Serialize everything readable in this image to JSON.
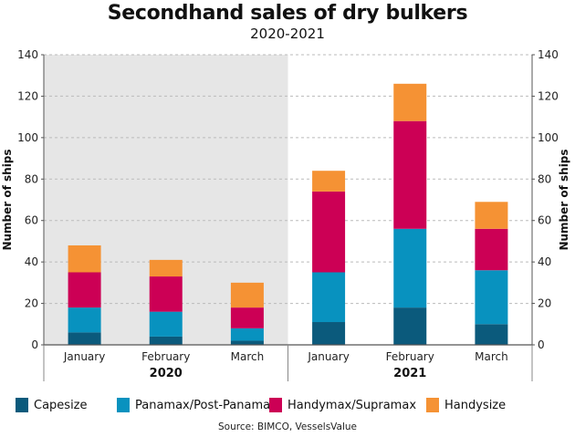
{
  "chart_data": {
    "type": "bar",
    "stacked": true,
    "title": "Secondhand sales of dry bulkers",
    "subtitle": "2020-2021",
    "ylabel_left": "Number of ships",
    "ylabel_right": "Number of ships",
    "ylim": [
      0,
      140
    ],
    "yticks": [
      0,
      20,
      40,
      60,
      80,
      100,
      120,
      140
    ],
    "grid": true,
    "groups": [
      {
        "label": "2020",
        "categories": [
          "January",
          "February",
          "March"
        ],
        "shaded": true
      },
      {
        "label": "2021",
        "categories": [
          "January",
          "February",
          "March"
        ],
        "shaded": false
      }
    ],
    "categories": [
      "January 2020",
      "February 2020",
      "March 2020",
      "January 2021",
      "February 2021",
      "March 2021"
    ],
    "series": [
      {
        "name": "Capesize",
        "color": "#0b5a7c",
        "values": [
          6,
          4,
          2,
          11,
          18,
          10
        ]
      },
      {
        "name": "Panamax/Post-Panamax",
        "color": "#0892bf",
        "values": [
          12,
          12,
          6,
          24,
          38,
          26
        ]
      },
      {
        "name": "Handymax/Supramax",
        "color": "#cc0055",
        "values": [
          17,
          17,
          10,
          39,
          52,
          20
        ]
      },
      {
        "name": "Handysize",
        "color": "#f59234",
        "values": [
          13,
          8,
          12,
          10,
          18,
          13
        ]
      }
    ],
    "legend_position": "bottom",
    "source": "Source: BIMCO, VesselsValue"
  }
}
